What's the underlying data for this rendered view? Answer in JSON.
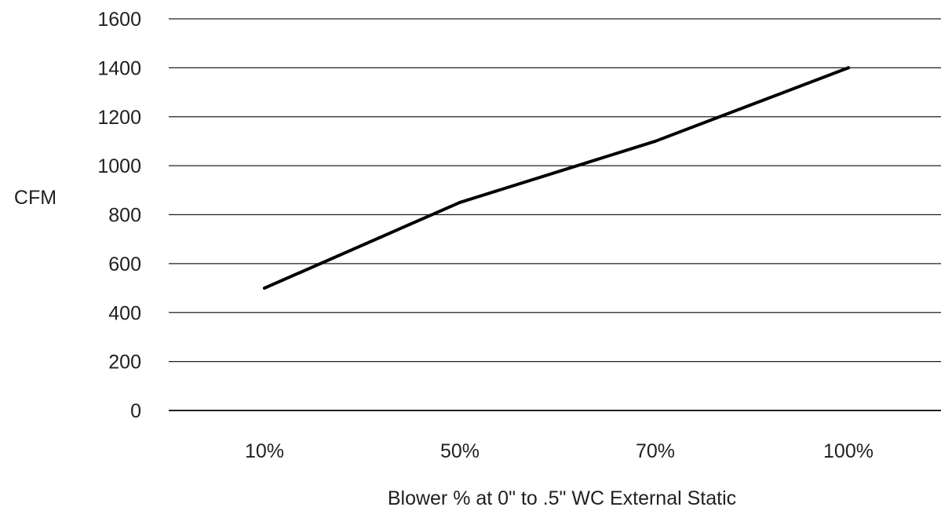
{
  "chart_data": {
    "type": "line",
    "categories": [
      "10%",
      "50%",
      "70%",
      "100%"
    ],
    "series": [
      {
        "values": [
          500,
          850,
          1100,
          1400
        ],
        "color": "#000000"
      }
    ],
    "xlabel": "Blower % at 0\" to .5\" WC External Static",
    "ylabel": "CFM",
    "ylim": [
      0,
      1600
    ],
    "yticks": [
      0,
      200,
      400,
      600,
      800,
      1000,
      1200,
      1400,
      1600
    ],
    "grid": true,
    "grid_color": "#231f20",
    "text_color": "#231f20"
  }
}
